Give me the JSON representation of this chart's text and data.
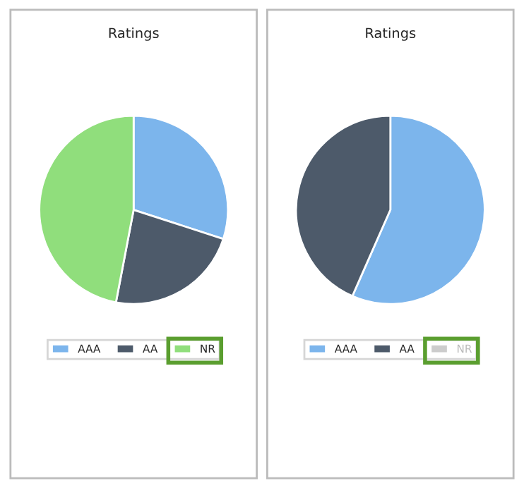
{
  "chart_data": [
    {
      "type": "pie",
      "title": "Ratings",
      "categories": [
        "AAA",
        "AA",
        "NR"
      ],
      "values": [
        30,
        23,
        47
      ],
      "colors": [
        "#7cb5ec",
        "#4d5a6a",
        "#90de7c"
      ],
      "legend": "bottom"
    },
    {
      "type": "pie",
      "title": "Ratings",
      "categories": [
        "AAA",
        "AA",
        "NR"
      ],
      "values": [
        56.6,
        43.4,
        null
      ],
      "colors": [
        "#7cb5ec",
        "#4d5a6a",
        "#cccccc"
      ],
      "legend": "bottom"
    }
  ]
}
